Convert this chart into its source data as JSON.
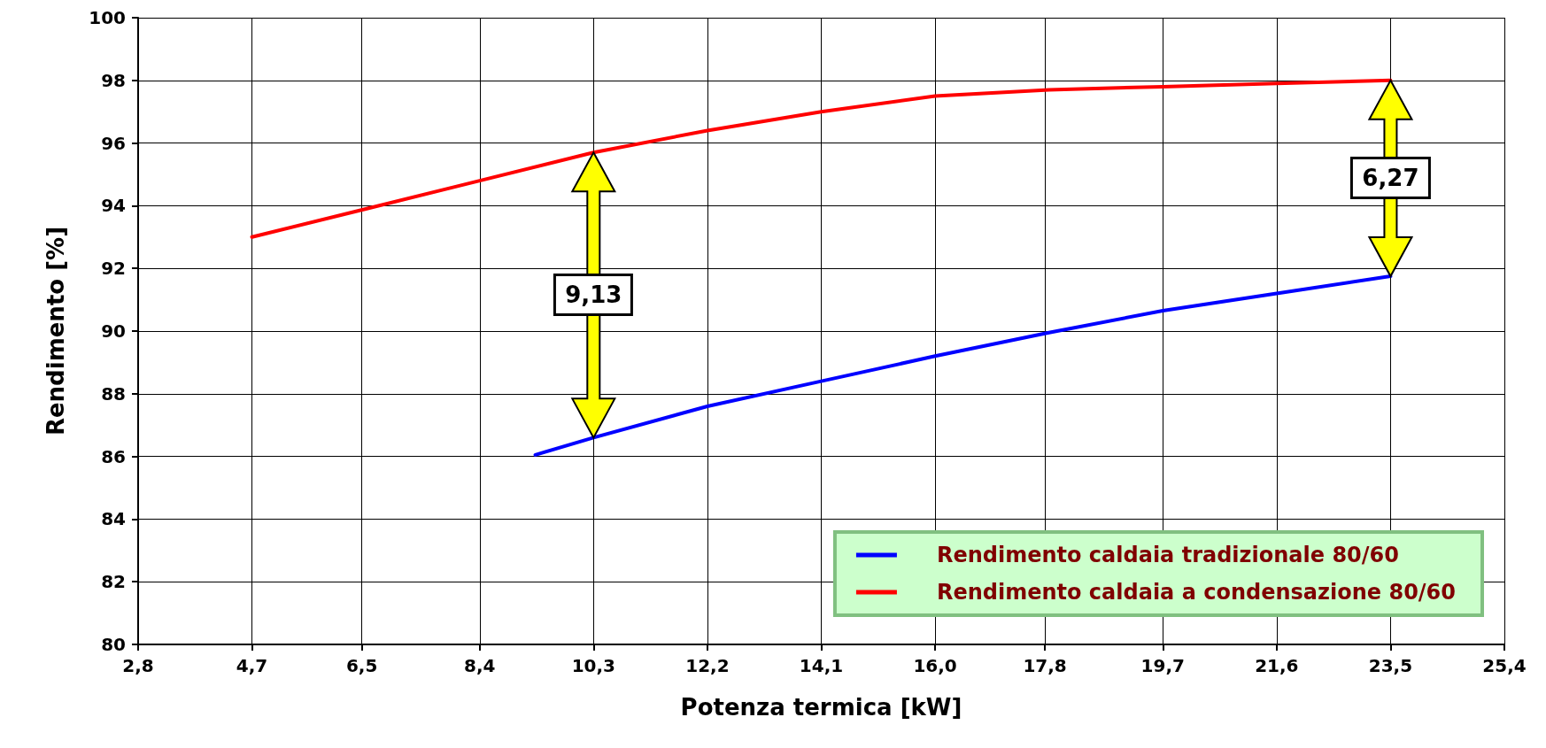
{
  "chart_data": {
    "type": "line",
    "xlabel": "Potenza termica [kW]",
    "ylabel": "Rendimento [%]",
    "xlim": [
      2.8,
      25.4
    ],
    "xticks": [
      {
        "value": 2.8,
        "label": "2,8"
      },
      {
        "value": 4.683,
        "label": "4,7"
      },
      {
        "value": 6.5,
        "label": "6,5"
      },
      {
        "value": 8.45,
        "label": "8,4"
      },
      {
        "value": 10.333,
        "label": "10,3"
      },
      {
        "value": 12.217,
        "label": "12,2"
      },
      {
        "value": 14.1,
        "label": "14,1"
      },
      {
        "value": 15.983,
        "label": "16,0"
      },
      {
        "value": 17.8,
        "label": "17,8"
      },
      {
        "value": 19.75,
        "label": "19,7"
      },
      {
        "value": 21.633,
        "label": "21,6"
      },
      {
        "value": 23.517,
        "label": "23,5"
      },
      {
        "value": 25.4,
        "label": "25,4"
      }
    ],
    "ylim": [
      80,
      100
    ],
    "yticks": [
      80,
      82,
      84,
      86,
      88,
      90,
      92,
      94,
      96,
      98,
      100
    ],
    "grid": true,
    "legend": "bottom right",
    "marker": "none",
    "line_style": "solid",
    "series": [
      {
        "name": "Rendimento caldaia tradizionale 80/60",
        "color": "#0000ff",
        "x": [
          9.37,
          10.333,
          12.217,
          14.1,
          15.983,
          17.867,
          19.75,
          21.633,
          23.517
        ],
        "values": [
          86.05,
          86.6,
          87.6,
          88.4,
          89.2,
          89.95,
          90.65,
          91.2,
          91.75
        ]
      },
      {
        "name": "Rendimento caldaia a condensazione 80/60",
        "color": "#ff0000",
        "x": [
          4.683,
          6.567,
          8.45,
          10.333,
          12.217,
          14.1,
          15.983,
          17.867,
          19.75,
          21.633,
          23.517
        ],
        "values": [
          93.0,
          93.9,
          94.8,
          95.7,
          96.4,
          97.0,
          97.5,
          97.7,
          97.8,
          97.9,
          98.0
        ]
      }
    ],
    "annotations": [
      "9,13",
      "6,27"
    ]
  }
}
